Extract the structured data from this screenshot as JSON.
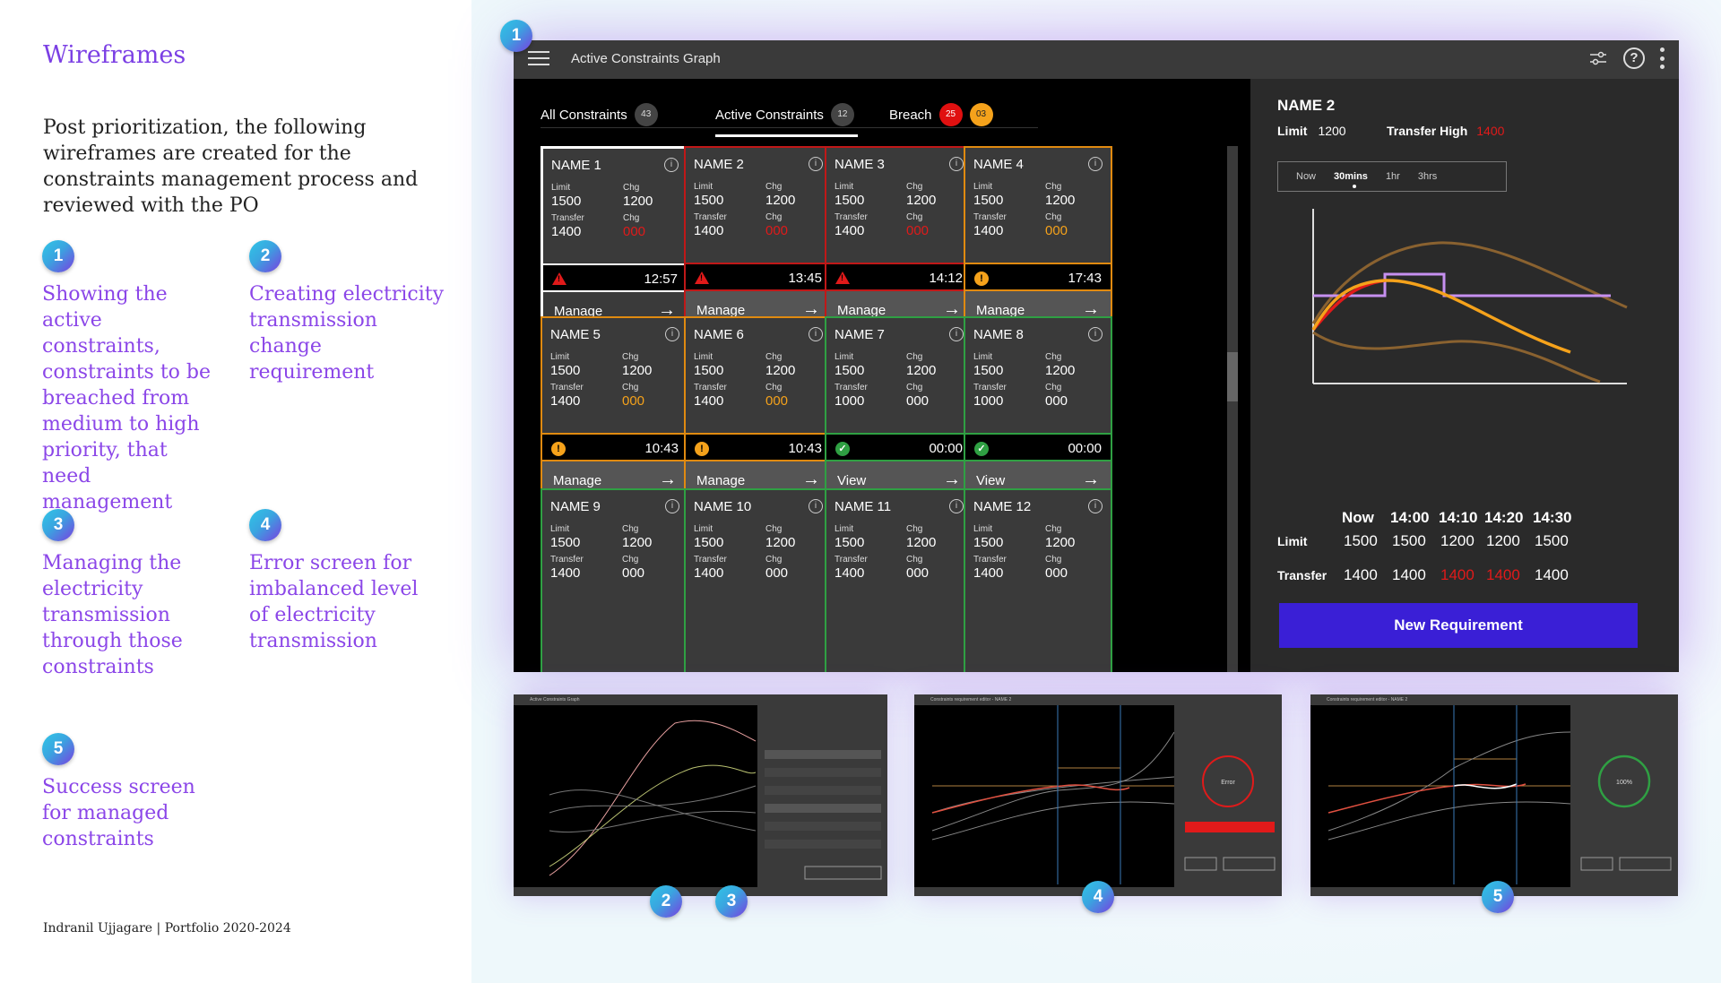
{
  "left": {
    "title": "Wireframes",
    "intro": "Post prioritization, the following wireframes are created for the constraints management process and reviewed with the PO",
    "steps": [
      {
        "num": "1",
        "text": "Showing the active constraints, constraints to be breached from medium to high priority, that need management"
      },
      {
        "num": "2",
        "text": "Creating electricity transmission change requirement"
      },
      {
        "num": "3",
        "text": "Managing the electricity transmission through those constraints"
      },
      {
        "num": "4",
        "text": "Error screen for imbalanced level of electricity transmission"
      },
      {
        "num": "5",
        "text": "Success screen for managed constraints"
      }
    ],
    "footer": "Indranil Ujjagare | Portfolio 2020-2024"
  },
  "app": {
    "badge": "1",
    "title": "Active Constraints Graph",
    "tabs": [
      {
        "label": "All Constraints",
        "count": "43"
      },
      {
        "label": "Active Constraints",
        "count": "12"
      },
      {
        "label": "Breach",
        "count_red": "25",
        "count_orange": "03"
      }
    ],
    "field_labels": {
      "limit": "Limit",
      "chg": "Chg",
      "transfer": "Transfer"
    },
    "cards": [
      {
        "name": "NAME 1",
        "limit": "1500",
        "chg1": "1200",
        "transfer": "1400",
        "chg2": "000",
        "chg2_color": "red",
        "time": "12:57",
        "action": "Manage",
        "border": "white",
        "status": "warn-red"
      },
      {
        "name": "NAME 2",
        "limit": "1500",
        "chg1": "1200",
        "transfer": "1400",
        "chg2": "000",
        "chg2_color": "red",
        "time": "13:45",
        "action": "Manage",
        "border": "red",
        "status": "warn-red"
      },
      {
        "name": "NAME 3",
        "limit": "1500",
        "chg1": "1200",
        "transfer": "1400",
        "chg2": "000",
        "chg2_color": "red",
        "time": "14:12",
        "action": "Manage",
        "border": "red",
        "status": "warn-red"
      },
      {
        "name": "NAME 4",
        "limit": "1500",
        "chg1": "1200",
        "transfer": "1400",
        "chg2": "000",
        "chg2_color": "orange",
        "time": "17:43",
        "action": "Manage",
        "border": "orange",
        "status": "warn-orange"
      },
      {
        "name": "NAME 5",
        "limit": "1500",
        "chg1": "1200",
        "transfer": "1400",
        "chg2": "000",
        "chg2_color": "orange",
        "time": "10:43",
        "action": "Manage",
        "border": "orange",
        "status": "warn-orange"
      },
      {
        "name": "NAME 6",
        "limit": "1500",
        "chg1": "1200",
        "transfer": "1400",
        "chg2": "000",
        "chg2_color": "orange",
        "time": "10:43",
        "action": "Manage",
        "border": "orange",
        "status": "warn-orange"
      },
      {
        "name": "NAME 7",
        "limit": "1500",
        "chg1": "1200",
        "transfer": "1000",
        "chg2": "000",
        "chg2_color": "white",
        "time": "00:00",
        "action": "View",
        "border": "green",
        "status": "ok"
      },
      {
        "name": "NAME 8",
        "limit": "1500",
        "chg1": "1200",
        "transfer": "1000",
        "chg2": "000",
        "chg2_color": "white",
        "time": "00:00",
        "action": "View",
        "border": "green",
        "status": "ok"
      },
      {
        "name": "NAME 9",
        "limit": "1500",
        "chg1": "1200",
        "transfer": "1400",
        "chg2": "000",
        "chg2_color": "white",
        "time": "",
        "action": "",
        "border": "green",
        "status": ""
      },
      {
        "name": "NAME 10",
        "limit": "1500",
        "chg1": "1200",
        "transfer": "1400",
        "chg2": "000",
        "chg2_color": "white",
        "time": "",
        "action": "",
        "border": "green",
        "status": ""
      },
      {
        "name": "NAME 11",
        "limit": "1500",
        "chg1": "1200",
        "transfer": "1400",
        "chg2": "000",
        "chg2_color": "white",
        "time": "",
        "action": "",
        "border": "green",
        "status": ""
      },
      {
        "name": "NAME 12",
        "limit": "1500",
        "chg1": "1200",
        "transfer": "1400",
        "chg2": "000",
        "chg2_color": "white",
        "time": "",
        "action": "",
        "border": "green",
        "status": ""
      }
    ],
    "detail": {
      "name": "NAME 2",
      "limit_label": "Limit",
      "limit_value": "1200",
      "transfer_high_label": "Transfer High",
      "transfer_high_value": "1400",
      "ranges": [
        "Now",
        "30mins",
        "1hr",
        "3hrs"
      ],
      "selected_range": "30mins",
      "table": {
        "columns": [
          "Now",
          "14:00",
          "14:10",
          "14:20",
          "14:30"
        ],
        "rows": [
          {
            "label": "Limit",
            "values": [
              "1500",
              "1500",
              "1200",
              "1200",
              "1500"
            ]
          },
          {
            "label": "Transfer",
            "values": [
              "1400",
              "1400",
              "1400",
              "1400",
              "1400"
            ],
            "red_index": [
              2,
              3
            ]
          }
        ]
      },
      "button": "New Requirement"
    }
  },
  "thumbnails": [
    {
      "title": "Active Constraints Graph",
      "badges": [
        "2",
        "3"
      ]
    },
    {
      "title": "Constraints requirement editor - NAME 2",
      "badges": [
        "4"
      ],
      "state": "Error"
    },
    {
      "title": "Constraints requirement editor - NAME 2",
      "badges": [
        "5"
      ],
      "state": "100%"
    }
  ],
  "colors": {
    "accent_purple": "#8b46e8",
    "button": "#3a1fd6",
    "red": "#e01a1a",
    "orange": "#f5a21b",
    "green": "#2fa043"
  }
}
